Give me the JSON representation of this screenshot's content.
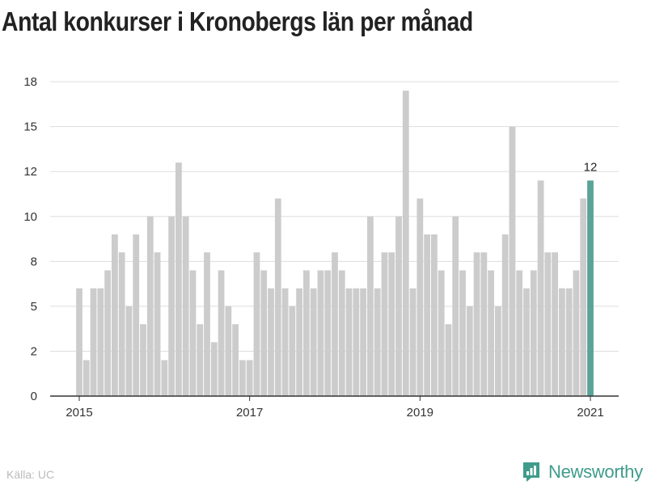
{
  "title": "Antal konkurser i Kronobergs län per månad",
  "source": "Källa: UC",
  "brand": {
    "name": "Newsworthy",
    "icon": "newsworthy-logo-icon",
    "color": "#3f9b8c"
  },
  "colors": {
    "bar": "#cccccc",
    "highlight": "#5aa399",
    "grid": "#dddddd",
    "axis": "#333333"
  },
  "chart_data": {
    "type": "bar",
    "title": "Antal konkurser i Kronobergs län per månad",
    "xlabel": "",
    "ylabel": "",
    "ylim": [
      0,
      18
    ],
    "y_ticks": [
      {
        "value": 0,
        "label": "0"
      },
      {
        "value": 2.5,
        "label": "2"
      },
      {
        "value": 5,
        "label": "5"
      },
      {
        "value": 7.5,
        "label": "8"
      },
      {
        "value": 10,
        "label": "10"
      },
      {
        "value": 12.5,
        "label": "12"
      },
      {
        "value": 15,
        "label": "15"
      },
      {
        "value": 17.5,
        "label": "18"
      }
    ],
    "x_ticks": [
      {
        "index": 0,
        "label": "2015"
      },
      {
        "index": 24,
        "label": "2017"
      },
      {
        "index": 48,
        "label": "2019"
      },
      {
        "index": 72,
        "label": "2021"
      }
    ],
    "start_month": "2015-01",
    "grid": true,
    "legend": "none",
    "highlight_index": 72,
    "highlight_label": "12",
    "values": [
      6,
      2,
      6,
      6,
      7,
      9,
      8,
      5,
      9,
      4,
      10,
      8,
      2,
      10,
      13,
      10,
      7,
      4,
      8,
      3,
      7,
      5,
      4,
      2,
      2,
      8,
      7,
      6,
      11,
      6,
      5,
      6,
      7,
      6,
      7,
      7,
      8,
      7,
      6,
      6,
      6,
      10,
      6,
      8,
      8,
      10,
      17,
      6,
      11,
      9,
      9,
      7,
      4,
      10,
      7,
      5,
      8,
      8,
      7,
      5,
      9,
      15,
      7,
      6,
      7,
      12,
      8,
      8,
      6,
      6,
      7,
      11,
      12
    ]
  }
}
